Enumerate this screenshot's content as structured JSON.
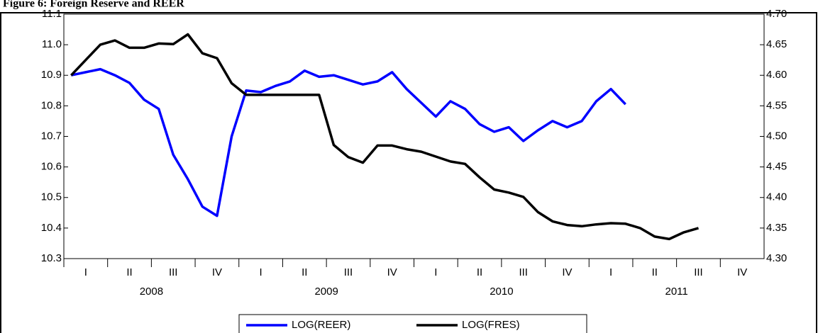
{
  "chart_data": {
    "type": "line",
    "title": "Figure 6: Foreign Reserve and REER",
    "quarter_labels": [
      "I",
      "II",
      "III",
      "IV",
      "I",
      "II",
      "III",
      "IV",
      "I",
      "II",
      "III",
      "IV",
      "I",
      "II",
      "III",
      "IV"
    ],
    "year_labels": [
      "2008",
      "2009",
      "2010",
      "2011"
    ],
    "series": [
      {
        "name": "LOG(REER)",
        "color": "#0000ff",
        "axis": "y",
        "values": [
          10.9,
          10.91,
          10.92,
          10.9,
          10.875,
          10.82,
          10.79,
          10.64,
          10.56,
          10.47,
          10.44,
          10.7,
          10.85,
          10.845,
          10.865,
          10.88,
          10.915,
          10.895,
          10.9,
          10.885,
          10.87,
          10.88,
          10.91,
          10.855,
          10.81,
          10.765,
          10.815,
          10.79,
          10.74,
          10.715,
          10.73,
          10.685,
          10.72,
          10.75,
          10.73,
          10.75,
          10.815,
          10.855,
          10.805,
          null,
          null,
          null,
          null,
          null,
          null,
          null,
          null,
          null
        ]
      },
      {
        "name": "LOG(FRES)",
        "color": "#000000",
        "axis": "y2",
        "values": [
          4.6,
          4.625,
          4.65,
          4.657,
          4.645,
          4.645,
          4.652,
          4.651,
          4.667,
          4.636,
          4.628,
          4.587,
          4.568,
          4.568,
          4.568,
          4.568,
          4.568,
          4.568,
          4.486,
          4.466,
          4.457,
          4.485,
          4.485,
          4.479,
          4.475,
          4.467,
          4.459,
          4.455,
          4.433,
          4.413,
          4.408,
          4.401,
          4.376,
          4.361,
          4.355,
          4.353,
          4.356,
          4.358,
          4.357,
          4.35,
          4.336,
          4.332,
          4.343,
          4.35,
          null,
          null,
          null,
          null
        ]
      }
    ],
    "ylim": [
      10.3,
      11.1
    ],
    "yticks": [
      10.3,
      10.4,
      10.5,
      10.6,
      10.7,
      10.8,
      10.9,
      {
        "value": 11,
        "label": "11.0"
      },
      11.1
    ],
    "y2lim": [
      4.3,
      4.7
    ],
    "y2ticks": [
      {
        "value": 4.3,
        "label": "4.30"
      },
      {
        "value": 4.35,
        "label": "4.35"
      },
      {
        "value": 4.4,
        "label": "4.40"
      },
      {
        "value": 4.45,
        "label": "4.45"
      },
      {
        "value": 4.5,
        "label": "4.50"
      },
      {
        "value": 4.55,
        "label": "4.55"
      },
      {
        "value": 4.6,
        "label": "4.60"
      },
      {
        "value": 4.65,
        "label": "4.65"
      },
      {
        "value": 4.7,
        "label": "4.70"
      }
    ],
    "grid": false
  }
}
